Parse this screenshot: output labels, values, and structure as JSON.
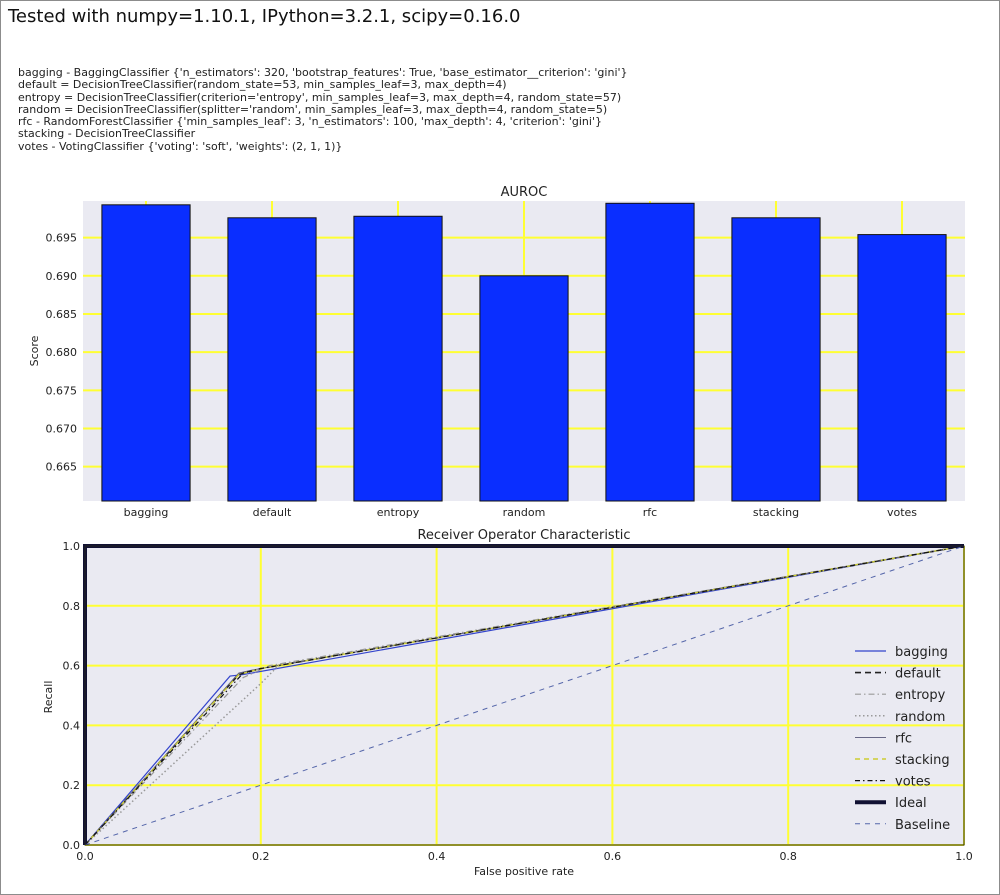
{
  "header": {
    "title": "Tested with numpy=1.10.1, IPython=3.2.1, scipy=0.16.0"
  },
  "description_lines": [
    "bagging -  BaggingClassifier {'n_estimators': 320, 'bootstrap_features': True, 'base_estimator__criterion': 'gini'}",
    "default = DecisionTreeClassifier(random_state=53, min_samples_leaf=3, max_depth=4)",
    "entropy = DecisionTreeClassifier(criterion='entropy', min_samples_leaf=3, max_depth=4, random_state=57)",
    "random = DecisionTreeClassifier(splitter='random', min_samples_leaf=3, max_depth=4, random_state=5)",
    "rfc - RandomForestClassifier  {'min_samples_leaf': 3, 'n_estimators': 100, 'max_depth': 4, 'criterion': 'gini'}",
    "stacking - DecisionTreeClassifier",
    "votes - VotingClassifier {'voting': 'soft', 'weights': (2, 1, 1)}"
  ],
  "colors": {
    "bar": "#0a2eff",
    "plot_bg": "#eaeaf2",
    "grid": "#ffff33",
    "bagging": "#3344cc",
    "default": "#222222",
    "entropy": "#999999",
    "random": "#999999",
    "rfc": "#555577",
    "stacking": "#cccc33",
    "votes": "#111111",
    "ideal": "#111133",
    "baseline": "#5566aa"
  },
  "chart_data": [
    {
      "type": "bar",
      "title": "AUROC",
      "xlabel": "",
      "ylabel": "Score",
      "categories": [
        "bagging",
        "default",
        "entropy",
        "random",
        "rfc",
        "stacking",
        "votes"
      ],
      "values": [
        0.6993,
        0.6976,
        0.6978,
        0.69,
        0.6995,
        0.6976,
        0.6954
      ],
      "ylim": [
        0.6605,
        0.6998
      ],
      "yticks": [
        "0.665",
        "0.670",
        "0.675",
        "0.680",
        "0.685",
        "0.690",
        "0.695"
      ],
      "ytick_values": [
        0.665,
        0.67,
        0.675,
        0.68,
        0.685,
        0.69,
        0.695
      ],
      "grid": true
    },
    {
      "type": "line",
      "title": "Receiver Operator Characteristic",
      "xlabel": "False positive rate",
      "ylabel": "Recall",
      "xlim": [
        0,
        1
      ],
      "ylim": [
        0,
        1
      ],
      "xticks": [
        "0.0",
        "0.2",
        "0.4",
        "0.6",
        "0.8",
        "1.0"
      ],
      "yticks": [
        "0.0",
        "0.2",
        "0.4",
        "0.6",
        "0.8",
        "1.0"
      ],
      "tick_values": [
        0,
        0.2,
        0.4,
        0.6,
        0.8,
        1.0
      ],
      "grid": true,
      "legend_position": "right",
      "series": [
        {
          "name": "bagging",
          "x": [
            0,
            0.165,
            0.18,
            1.0
          ],
          "y": [
            0,
            0.565,
            0.57,
            1.0
          ],
          "style": "solid"
        },
        {
          "name": "default",
          "x": [
            0,
            0.175,
            0.2,
            1.0
          ],
          "y": [
            0,
            0.57,
            0.59,
            1.0
          ],
          "style": "dashed"
        },
        {
          "name": "entropy",
          "x": [
            0,
            0.18,
            0.21,
            1.0
          ],
          "y": [
            0,
            0.56,
            0.6,
            1.0
          ],
          "style": "dashdot"
        },
        {
          "name": "random",
          "x": [
            0,
            0.2,
            0.22,
            1.0
          ],
          "y": [
            0,
            0.54,
            0.6,
            1.0
          ],
          "style": "dotted"
        },
        {
          "name": "rfc",
          "x": [
            0,
            0.175,
            0.19,
            1.0
          ],
          "y": [
            0,
            0.575,
            0.585,
            1.0
          ],
          "style": "solid-thin"
        },
        {
          "name": "stacking",
          "x": [
            0,
            0.175,
            0.2,
            1.0
          ],
          "y": [
            0,
            0.57,
            0.59,
            1.0
          ],
          "style": "dashed-yellow"
        },
        {
          "name": "votes",
          "x": [
            0,
            0.18,
            0.2,
            1.0
          ],
          "y": [
            0,
            0.575,
            0.59,
            1.0
          ],
          "style": "dashdot-black"
        },
        {
          "name": "Ideal",
          "x": [
            0,
            0,
            1.0
          ],
          "y": [
            0,
            1.0,
            1.0
          ],
          "style": "thick"
        },
        {
          "name": "Baseline",
          "x": [
            0,
            1.0
          ],
          "y": [
            0,
            1.0
          ],
          "style": "dashed-blue"
        }
      ]
    }
  ]
}
